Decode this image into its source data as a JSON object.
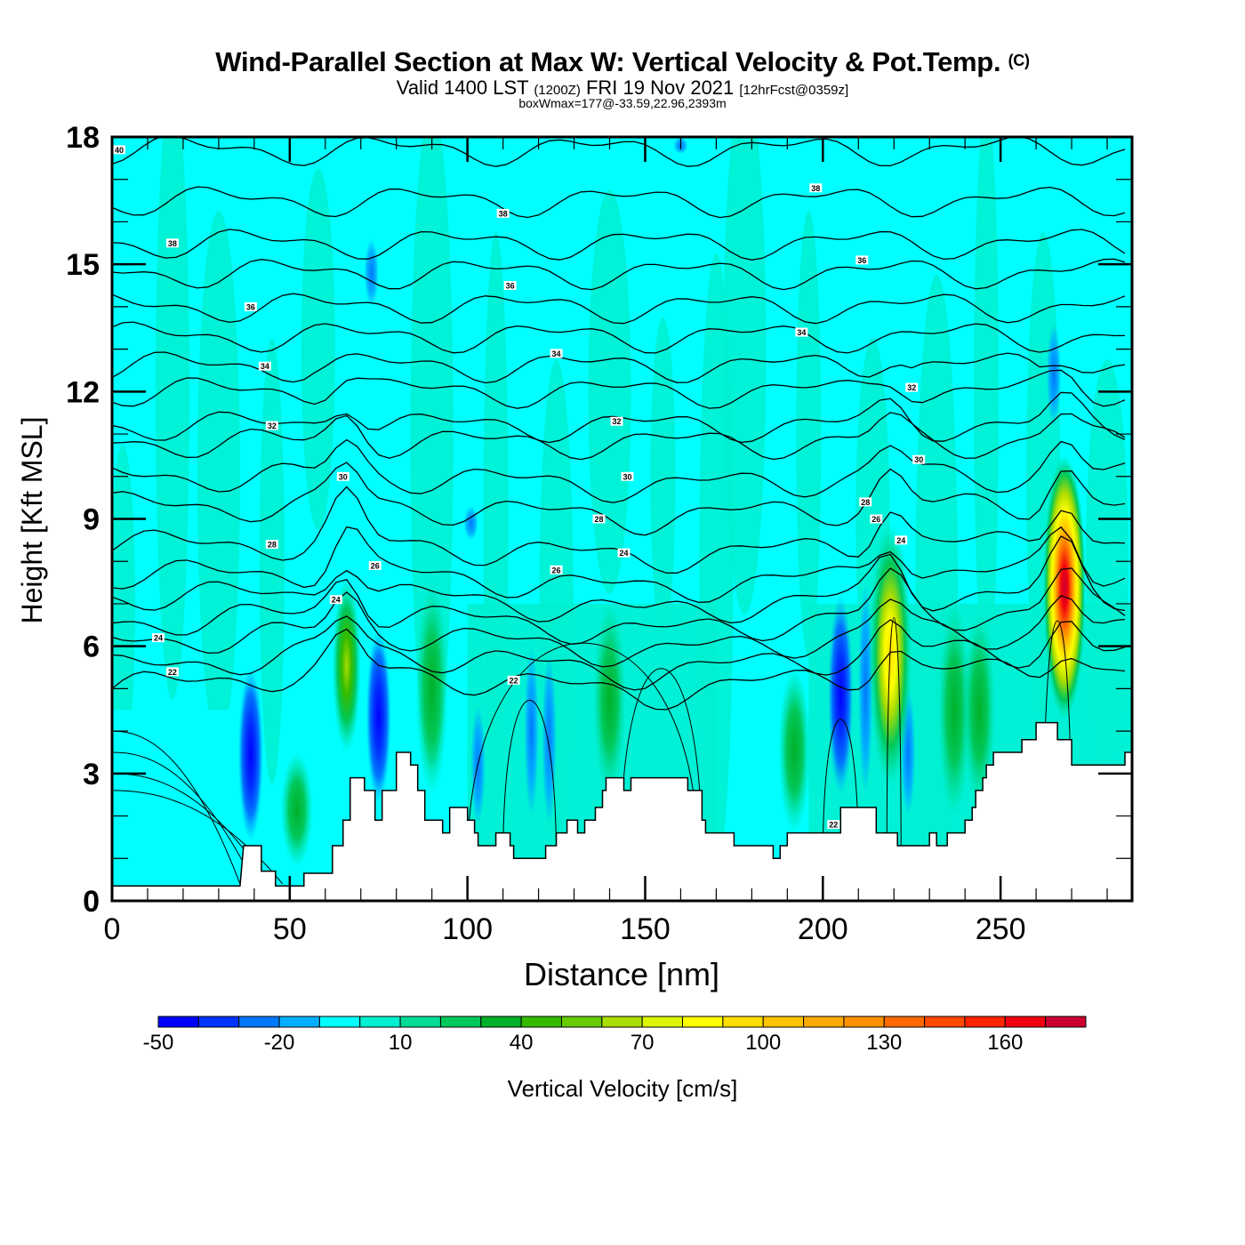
{
  "header": {
    "title": "Wind-Parallel Section at Max W: Vertical Velocity & Pot.Temp.",
    "copyright": "(C)",
    "valid_prefix": "Valid 1400 LST",
    "valid_utc": "(1200Z)",
    "valid_date": "FRI 19 Nov 2021",
    "forecast": "[12hrFcst@0359z]",
    "box_wmax": "boxWmax=177@-33.59,22.96,2393m"
  },
  "chart_data": {
    "type": "heatmap",
    "title": "Wind-Parallel Section at Max W: Vertical Velocity & Pot.Temp.",
    "xlabel": "Distance [nm]",
    "ylabel": "Height [Kft MSL]",
    "xlim": [
      0,
      287
    ],
    "ylim": [
      0,
      18
    ],
    "x_ticks": [
      "0",
      "50",
      "100",
      "150",
      "200",
      "250"
    ],
    "x_tick_values": [
      0,
      50,
      100,
      150,
      200,
      250
    ],
    "y_ticks": [
      "0",
      "3",
      "6",
      "9",
      "12",
      "15",
      "18"
    ],
    "y_tick_values": [
      0,
      3,
      6,
      9,
      12,
      15,
      18
    ],
    "colorbar": {
      "label": "Vertical Velocity [cm/s]",
      "levels": [
        -50,
        -40,
        -30,
        -20,
        -10,
        0,
        10,
        20,
        30,
        40,
        50,
        60,
        70,
        80,
        90,
        100,
        110,
        120,
        130,
        140,
        150,
        160,
        170,
        180
      ],
      "tick_labels": [
        "-50",
        "-20",
        "10",
        "40",
        "70",
        "100",
        "130",
        "160"
      ],
      "tick_values": [
        -50,
        -20,
        10,
        40,
        70,
        100,
        130,
        160
      ],
      "colors": [
        "#0000ff",
        "#0033ff",
        "#0077ff",
        "#00b0ff",
        "#00ffff",
        "#00f0d0",
        "#00dc98",
        "#00c85a",
        "#00b028",
        "#33bb00",
        "#66cc00",
        "#aadd00",
        "#ddf500",
        "#ffff00",
        "#ffdd00",
        "#ffc400",
        "#ffaa00",
        "#ff9000",
        "#ff6a00",
        "#ff4800",
        "#ff2400",
        "#f00010",
        "#cc0030"
      ]
    },
    "updraft_maxima": [
      {
        "x": 66,
        "ymin": 3.5,
        "ymax": 7.6,
        "peak": 60
      },
      {
        "x": 219,
        "ymin": 2.7,
        "ymax": 8.9,
        "peak": 100
      },
      {
        "x": 268,
        "ymin": 4.3,
        "ymax": 10.5,
        "peak": 170
      }
    ],
    "downdraft_minima": [
      {
        "x": 39,
        "ymin": 1.4,
        "ymax": 5.5,
        "peak": -50
      },
      {
        "x": 75,
        "ymin": 2.3,
        "ymax": 6.4,
        "peak": -40
      },
      {
        "x": 205,
        "ymin": 2.5,
        "ymax": 7.2,
        "peak": -20
      }
    ],
    "contour_labels": [
      {
        "text": "40",
        "x": 2,
        "y": 17.7
      },
      {
        "text": "38",
        "x": 17,
        "y": 15.5
      },
      {
        "text": "36",
        "x": 39,
        "y": 14.0
      },
      {
        "text": "34",
        "x": 43,
        "y": 12.6
      },
      {
        "text": "32",
        "x": 45,
        "y": 11.2
      },
      {
        "text": "30",
        "x": 65,
        "y": 10.0
      },
      {
        "text": "28",
        "x": 45,
        "y": 8.4
      },
      {
        "text": "24",
        "x": 13,
        "y": 6.2
      },
      {
        "text": "22",
        "x": 17,
        "y": 5.4
      },
      {
        "text": "24",
        "x": 63,
        "y": 7.1
      },
      {
        "text": "26",
        "x": 74,
        "y": 7.9
      },
      {
        "text": "38",
        "x": 110,
        "y": 16.2
      },
      {
        "text": "36",
        "x": 112,
        "y": 14.5
      },
      {
        "text": "34",
        "x": 125,
        "y": 12.9
      },
      {
        "text": "32",
        "x": 142,
        "y": 11.3
      },
      {
        "text": "30",
        "x": 145,
        "y": 10.0
      },
      {
        "text": "28",
        "x": 137,
        "y": 9.0
      },
      {
        "text": "26",
        "x": 125,
        "y": 7.8
      },
      {
        "text": "24",
        "x": 144,
        "y": 8.2
      },
      {
        "text": "22",
        "x": 113,
        "y": 5.2
      },
      {
        "text": "38",
        "x": 198,
        "y": 16.8
      },
      {
        "text": "36",
        "x": 211,
        "y": 15.1
      },
      {
        "text": "34",
        "x": 194,
        "y": 13.4
      },
      {
        "text": "32",
        "x": 225,
        "y": 12.1
      },
      {
        "text": "30",
        "x": 227,
        "y": 10.4
      },
      {
        "text": "28",
        "x": 212,
        "y": 9.4
      },
      {
        "text": "26",
        "x": 215,
        "y": 9.0
      },
      {
        "text": "24",
        "x": 222,
        "y": 8.5
      },
      {
        "text": "22",
        "x": 203,
        "y": 1.8
      }
    ],
    "theta_levels": [
      22,
      23,
      24,
      25,
      26,
      27,
      28,
      29,
      30,
      31,
      32,
      33,
      34,
      35,
      36,
      37,
      38,
      39,
      40
    ],
    "terrain": [
      [
        0,
        0.35
      ],
      [
        36,
        0.35
      ],
      [
        37,
        1.3
      ],
      [
        42,
        1.3
      ],
      [
        42,
        0.7
      ],
      [
        46,
        0.7
      ],
      [
        46,
        0.35
      ],
      [
        54,
        0.35
      ],
      [
        54,
        0.65
      ],
      [
        62,
        0.65
      ],
      [
        62,
        1.3
      ],
      [
        65,
        1.3
      ],
      [
        65,
        1.9
      ],
      [
        67,
        1.9
      ],
      [
        67,
        2.9
      ],
      [
        71,
        2.9
      ],
      [
        71,
        2.6
      ],
      [
        74,
        2.6
      ],
      [
        74,
        1.9
      ],
      [
        76,
        1.9
      ],
      [
        76,
        2.6
      ],
      [
        80,
        2.6
      ],
      [
        80,
        3.5
      ],
      [
        84,
        3.5
      ],
      [
        84,
        3.2
      ],
      [
        86,
        3.2
      ],
      [
        86,
        2.6
      ],
      [
        88,
        2.6
      ],
      [
        88,
        1.9
      ],
      [
        93,
        1.9
      ],
      [
        93,
        1.6
      ],
      [
        95,
        1.6
      ],
      [
        95,
        2.2
      ],
      [
        100,
        2.2
      ],
      [
        100,
        1.9
      ],
      [
        102,
        1.9
      ],
      [
        102,
        1.6
      ],
      [
        103,
        1.6
      ],
      [
        103,
        1.3
      ],
      [
        108,
        1.3
      ],
      [
        108,
        1.6
      ],
      [
        112,
        1.6
      ],
      [
        112,
        1.3
      ],
      [
        113,
        1.3
      ],
      [
        113,
        1.0
      ],
      [
        122,
        1.0
      ],
      [
        122,
        1.3
      ],
      [
        125,
        1.3
      ],
      [
        125,
        1.6
      ],
      [
        128,
        1.6
      ],
      [
        128,
        1.9
      ],
      [
        131,
        1.9
      ],
      [
        131,
        1.6
      ],
      [
        133,
        1.6
      ],
      [
        133,
        1.9
      ],
      [
        136,
        1.9
      ],
      [
        136,
        2.2
      ],
      [
        138,
        2.2
      ],
      [
        138,
        2.6
      ],
      [
        139,
        2.6
      ],
      [
        139,
        2.9
      ],
      [
        144,
        2.9
      ],
      [
        144,
        2.6
      ],
      [
        146,
        2.6
      ],
      [
        146,
        2.9
      ],
      [
        162,
        2.9
      ],
      [
        162,
        2.6
      ],
      [
        166,
        2.6
      ],
      [
        166,
        1.9
      ],
      [
        167,
        1.9
      ],
      [
        167,
        1.6
      ],
      [
        175,
        1.6
      ],
      [
        175,
        1.3
      ],
      [
        186,
        1.3
      ],
      [
        186,
        1.0
      ],
      [
        188,
        1.0
      ],
      [
        188,
        1.3
      ],
      [
        190,
        1.3
      ],
      [
        190,
        1.6
      ],
      [
        205,
        1.6
      ],
      [
        205,
        2.2
      ],
      [
        215,
        2.2
      ],
      [
        215,
        1.6
      ],
      [
        221,
        1.6
      ],
      [
        221,
        1.3
      ],
      [
        230,
        1.3
      ],
      [
        230,
        1.6
      ],
      [
        232,
        1.6
      ],
      [
        232,
        1.3
      ],
      [
        235,
        1.3
      ],
      [
        235,
        1.6
      ],
      [
        240,
        1.6
      ],
      [
        240,
        1.9
      ],
      [
        242,
        1.9
      ],
      [
        242,
        2.2
      ],
      [
        243,
        2.2
      ],
      [
        243,
        2.6
      ],
      [
        245,
        2.6
      ],
      [
        245,
        2.9
      ],
      [
        246,
        2.9
      ],
      [
        246,
        3.2
      ],
      [
        248,
        3.2
      ],
      [
        248,
        3.5
      ],
      [
        256,
        3.5
      ],
      [
        256,
        3.8
      ],
      [
        260,
        3.8
      ],
      [
        260,
        4.2
      ],
      [
        266,
        4.2
      ],
      [
        266,
        3.8
      ],
      [
        270,
        3.8
      ],
      [
        270,
        3.2
      ],
      [
        285,
        3.2
      ],
      [
        285,
        3.5
      ],
      [
        287,
        3.5
      ],
      [
        287,
        0
      ]
    ]
  }
}
